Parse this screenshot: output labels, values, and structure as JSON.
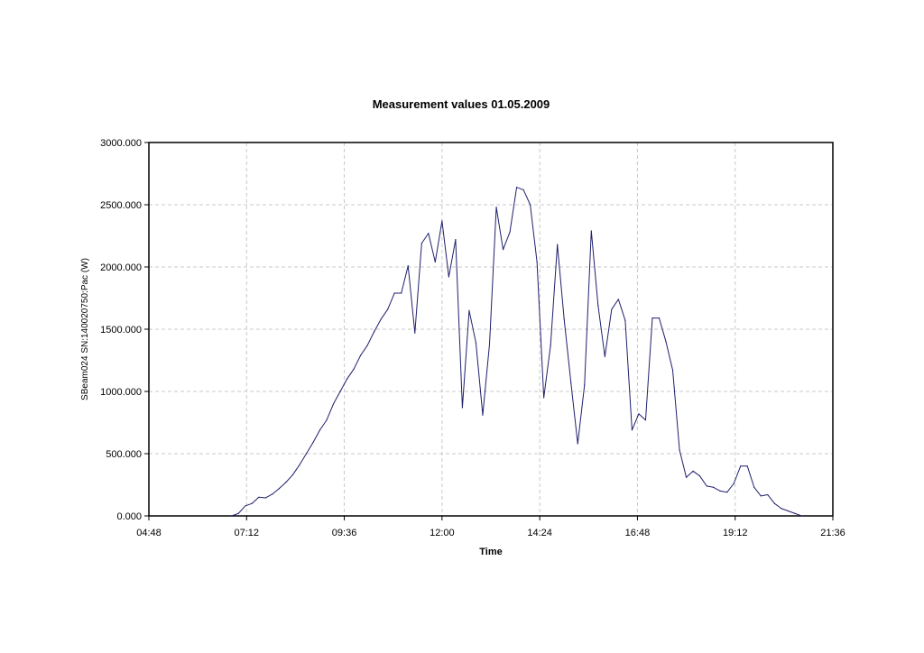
{
  "chart_data": {
    "type": "line",
    "title": "Measurement values 01.05.2009",
    "xlabel": "Time",
    "ylabel": "SBeam024 SN:140020750:Pac (W)",
    "x_ticks": [
      "04:48",
      "07:12",
      "09:36",
      "12:00",
      "14:24",
      "16:48",
      "19:12",
      "21:36"
    ],
    "y_ticks": [
      "0.000",
      "500.000",
      "1000.000",
      "1500.000",
      "2000.000",
      "2500.000",
      "3000.000"
    ],
    "xlim": [
      "04:48",
      "21:36"
    ],
    "ylim": [
      0,
      3000
    ],
    "grid": true,
    "line_color": "#1f1f6e",
    "series": [
      {
        "x": [
          "06:50",
          "07:00",
          "07:10",
          "07:20",
          "07:30",
          "07:40",
          "07:50",
          "08:00",
          "08:10",
          "08:20",
          "08:30",
          "08:40",
          "08:50",
          "09:00",
          "09:10",
          "09:20",
          "09:30",
          "09:40",
          "09:50",
          "10:00",
          "10:10",
          "10:20",
          "10:30",
          "10:40",
          "10:50",
          "11:00",
          "11:10",
          "11:20",
          "11:30",
          "11:40",
          "11:50",
          "12:00",
          "12:10",
          "12:20",
          "12:30",
          "12:40",
          "12:50",
          "13:00",
          "13:10",
          "13:20",
          "13:30",
          "13:40",
          "13:50",
          "14:00",
          "14:10",
          "14:20",
          "14:30",
          "14:40",
          "14:50",
          "15:00",
          "15:10",
          "15:20",
          "15:30",
          "15:40",
          "15:50",
          "16:00",
          "16:10",
          "16:20",
          "16:30",
          "16:40",
          "16:50",
          "17:00",
          "17:10",
          "17:20",
          "17:30",
          "17:40",
          "17:50",
          "18:00",
          "18:10",
          "18:20",
          "18:30",
          "18:40",
          "18:50",
          "19:00",
          "19:10",
          "19:20",
          "19:30",
          "19:40",
          "19:50",
          "20:00",
          "20:10",
          "20:20",
          "20:30",
          "20:40",
          "20:50"
        ],
        "values": [
          0,
          20,
          80,
          100,
          150,
          145,
          175,
          220,
          270,
          330,
          410,
          500,
          590,
          690,
          770,
          900,
          1000,
          1100,
          1180,
          1290,
          1370,
          1480,
          1580,
          1660,
          1790,
          1790,
          2010,
          1470,
          2190,
          2270,
          2040,
          2370,
          1920,
          2220,
          870,
          1650,
          1390,
          810,
          1380,
          2480,
          2140,
          2280,
          2640,
          2620,
          2500,
          2040,
          950,
          1370,
          2180,
          1580,
          1070,
          580,
          1050,
          2290,
          1690,
          1280,
          1660,
          1740,
          1570,
          690,
          820,
          770,
          1590,
          1590,
          1400,
          1170,
          530,
          310,
          360,
          320,
          240,
          230,
          200,
          190,
          260,
          400,
          400,
          230,
          160,
          170,
          100,
          60,
          40,
          20,
          0
        ]
      }
    ]
  }
}
